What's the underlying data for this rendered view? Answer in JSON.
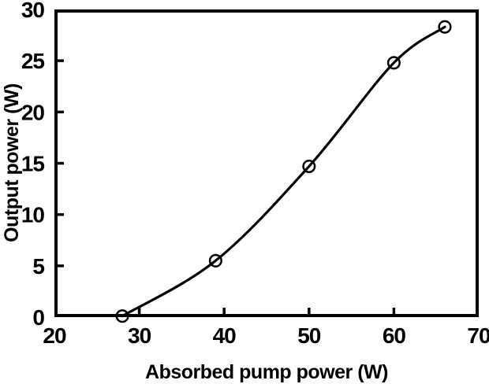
{
  "chart_data": {
    "type": "line",
    "title": "",
    "xlabel": "Absorbed pump power (W)",
    "ylabel": "Output power (W)",
    "x": [
      28,
      39,
      50,
      60,
      66
    ],
    "y": [
      0.1,
      5.5,
      14.7,
      24.8,
      28.3
    ],
    "series": [
      {
        "name": "Output power",
        "x": [
          28,
          39,
          50,
          60,
          66
        ],
        "y": [
          0.1,
          5.5,
          14.7,
          24.8,
          28.3
        ]
      }
    ],
    "xlim": [
      20,
      70
    ],
    "ylim": [
      0,
      30
    ],
    "x_ticks": [
      20,
      30,
      40,
      50,
      60,
      70
    ],
    "y_ticks": [
      0,
      5,
      10,
      15,
      20,
      25,
      30
    ],
    "grid": false,
    "legend": null,
    "marker": "open-circle",
    "line_style": "smooth",
    "line_color": "#000000",
    "frame_color": "#000000",
    "background": "#ffffff"
  }
}
